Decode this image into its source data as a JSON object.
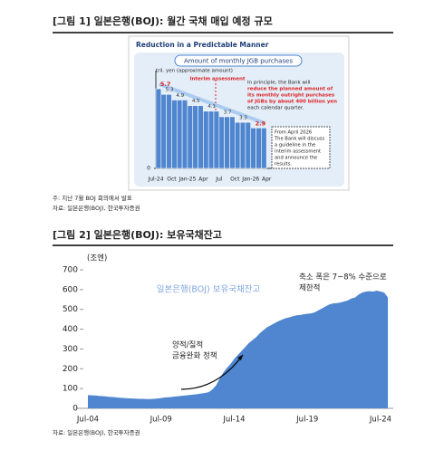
{
  "chart_data": [
    {
      "type": "bar",
      "heading": "[그림 1] 일본은행(BOJ): 월간 국채 매입 예정 규모",
      "title": "Reduction in a Predictable Manner",
      "subtitle": "Amount of monthly JGB purchases",
      "y_label": "tril. yen (approximate amount)",
      "categories": [
        "Jul-24",
        null,
        null,
        "Oct",
        null,
        null,
        "Jan-25",
        null,
        null,
        "Apr",
        null,
        null,
        "Jul",
        null,
        null,
        "Oct",
        null,
        null,
        "Jan-26",
        null,
        null,
        "Apr"
      ],
      "values": [
        5.7,
        5.3,
        5.3,
        4.9,
        4.9,
        4.9,
        4.5,
        4.5,
        4.5,
        4.1,
        4.1,
        4.1,
        3.7,
        3.7,
        3.7,
        3.3,
        3.3,
        3.3,
        2.9,
        2.9,
        2.9,
        null
      ],
      "color": "#4f86cf",
      "ylim": [
        0,
        7
      ],
      "yticks": [
        0
      ],
      "interim_label": "Interim assessment",
      "annotation": [
        "In principle, the Bank will",
        "reduce the planned amount of",
        "its monthly outright purchases",
        "of JGBs by about 400 billion yen",
        "each calendar quarter."
      ],
      "box": [
        "From April 2026",
        "The Bank will discuss",
        "a guideline in the",
        "interim assessment",
        "and announce the",
        "results."
      ],
      "notes": [
        "주: 지난 7월 BOJ 회의에서 발표",
        "자료: 일본은행(BOJ), 한국투자증권"
      ]
    },
    {
      "type": "area",
      "heading": "[그림 2] 일본은행(BOJ): 보유국채잔고",
      "y_label": "(조엔)",
      "categories": [
        "Jul-04",
        null,
        null,
        null,
        null,
        null,
        null,
        null,
        null,
        null,
        null,
        null,
        null,
        null,
        null,
        null,
        null,
        null,
        null,
        null,
        "Jul-09",
        null,
        null,
        null,
        null,
        null,
        null,
        null,
        null,
        null,
        null,
        null,
        null,
        null,
        null,
        null,
        null,
        null,
        null,
        null,
        "Jul-14",
        null,
        null,
        null,
        null,
        null,
        null,
        null,
        null,
        null,
        null,
        null,
        null,
        null,
        null,
        null,
        null,
        null,
        null,
        null,
        "Jul-19",
        null,
        null,
        null,
        null,
        null,
        null,
        null,
        null,
        null,
        null,
        null,
        null,
        null,
        null,
        null,
        null,
        null,
        null,
        null,
        "Jul-24",
        null,
        null
      ],
      "series": [
        {
          "name": "일본은행(BOJ) 보유국채잔고",
          "color": "#4f86cf",
          "values": [
            67,
            66,
            65,
            63,
            62,
            60,
            58,
            57,
            55,
            53,
            52,
            51,
            50,
            49,
            48,
            48,
            47,
            47,
            48,
            50,
            52,
            55,
            56,
            58,
            60,
            62,
            64,
            66,
            68,
            70,
            72,
            75,
            78,
            82,
            95,
            115,
            150,
            180,
            205,
            225,
            250,
            270,
            290,
            310,
            330,
            345,
            360,
            380,
            395,
            410,
            420,
            430,
            440,
            448,
            455,
            460,
            465,
            470,
            472,
            475,
            478,
            480,
            485,
            495,
            505,
            515,
            525,
            530,
            532,
            535,
            540,
            545,
            555,
            560,
            575,
            585,
            590,
            592,
            590,
            595,
            590,
            585,
            560
          ]
        }
      ],
      "ylim": [
        0,
        700
      ],
      "yticks": [
        0,
        100,
        200,
        300,
        400,
        500,
        600,
        700
      ],
      "annotations": [
        [
          "양적/질적",
          "금융완화 정책"
        ],
        [
          "축소 폭은 7~8% 수준으로",
          "제한적"
        ]
      ],
      "notes": [
        "자료: 일본은행(BOJ), 한국투자증권"
      ]
    }
  ]
}
